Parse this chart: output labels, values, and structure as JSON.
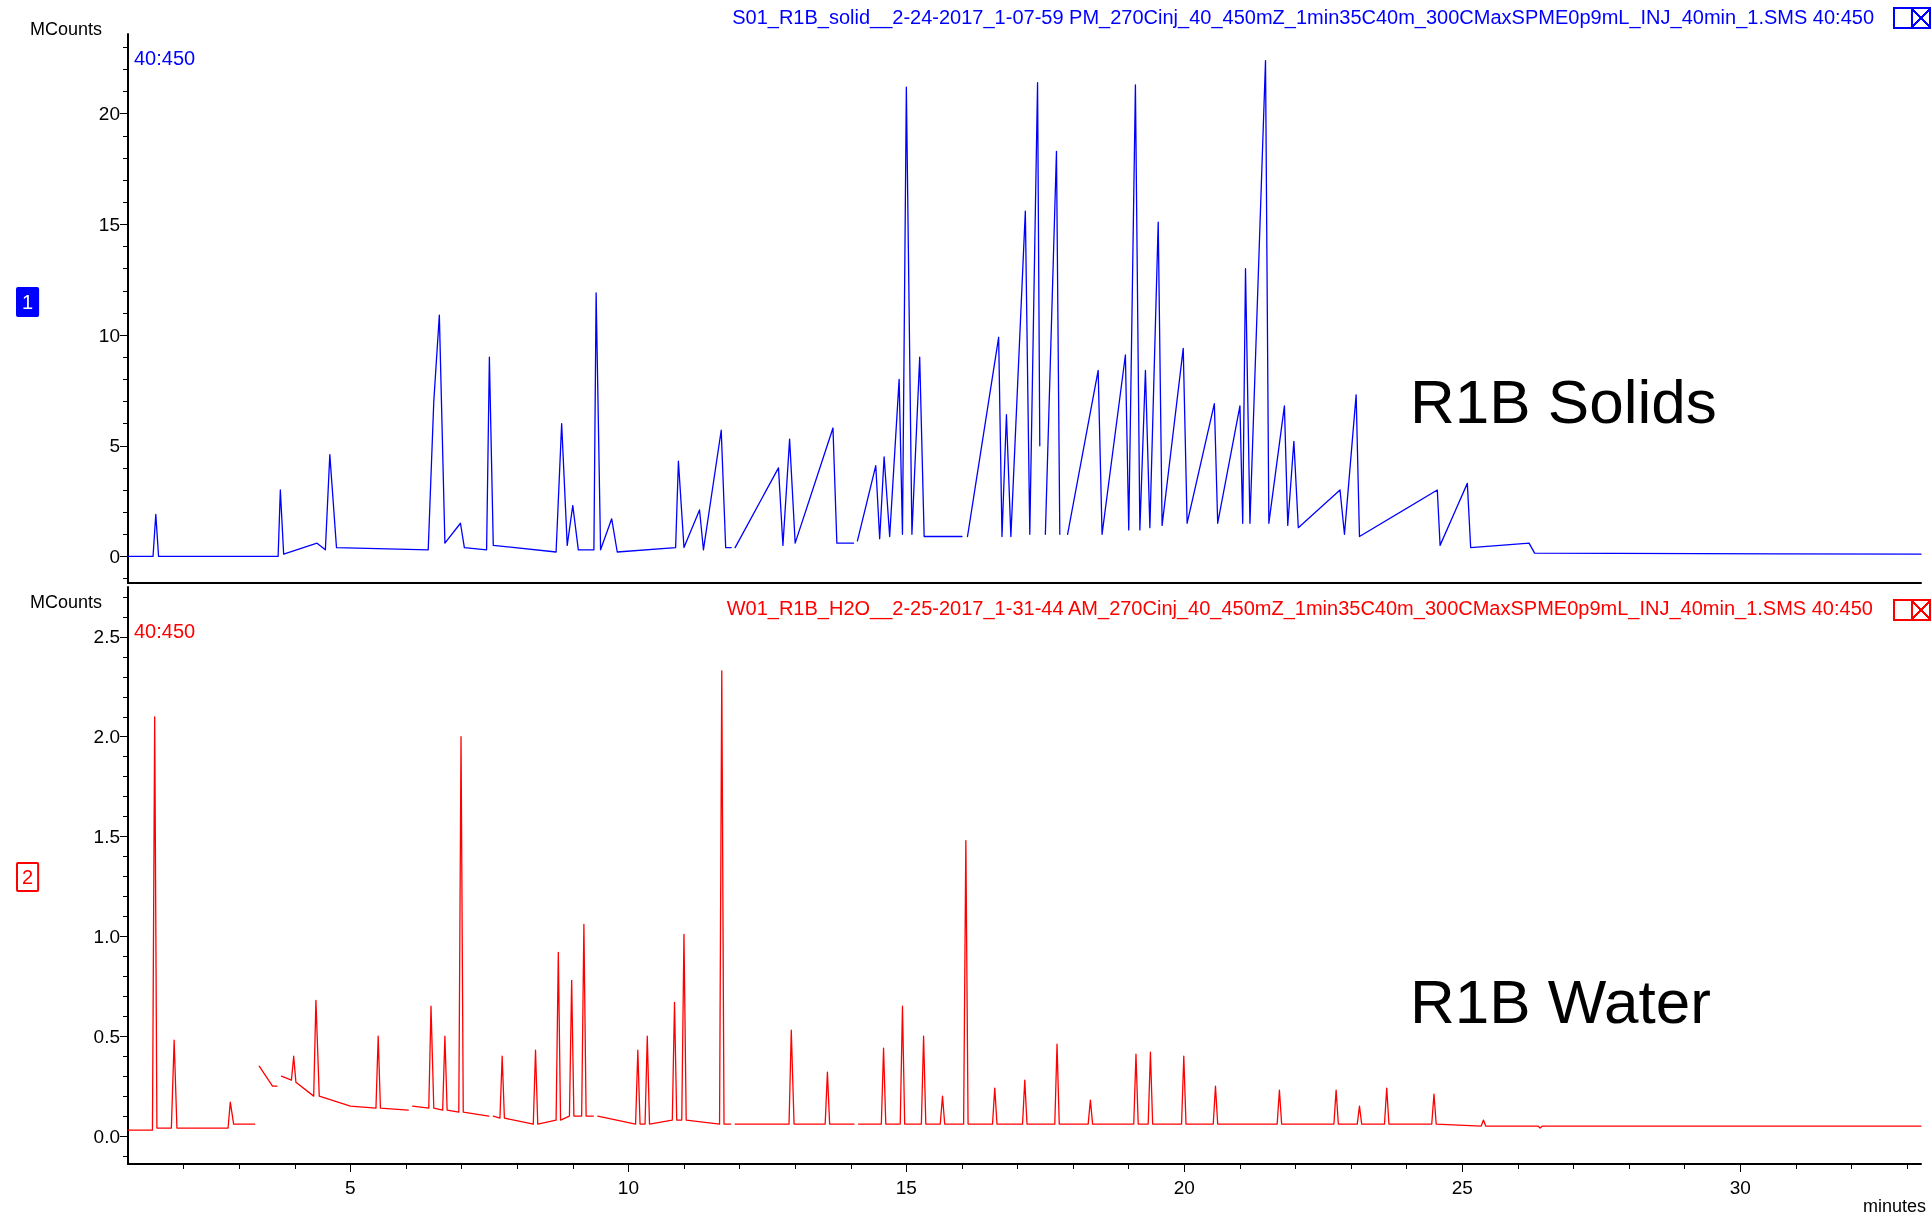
{
  "chart_data": [
    {
      "type": "line",
      "title": "S01_R1B_solid__2-24-2017_1-07-59 PM_270Cinj_40_450mZ_1min35C40m_300CMaxSPME0p9mL_INJ_40min_1.SMS 40:450",
      "ylabel": "MCounts",
      "annotations": [
        "40:450",
        "1",
        "R1B Solids"
      ],
      "marker": "none",
      "tick_labels": "y",
      "xlim": [
        1,
        33.25
      ],
      "xticks": [
        5,
        10,
        15,
        20,
        25,
        30
      ],
      "ylim": [
        -1.2,
        23.6
      ],
      "yticks": [
        0,
        5,
        10,
        15,
        20
      ],
      "x": [
        1.0,
        1.45,
        1.5,
        1.55,
        3.7,
        3.74,
        3.8,
        4.4,
        4.55,
        4.63,
        4.75,
        6.4,
        6.5,
        6.6,
        6.7,
        6.98,
        7.05,
        7.45,
        7.5,
        7.57,
        8.7,
        8.8,
        8.9,
        9.0,
        9.1,
        9.38,
        9.42,
        9.5,
        9.7,
        9.8,
        10.85,
        10.9,
        11.0,
        11.28,
        11.35,
        11.67,
        11.75,
        11.85,
        11.87,
        11.92,
        12.7,
        12.78,
        12.9,
        13.0,
        13.68,
        13.75,
        14.05,
        14.08,
        14.12,
        14.45,
        14.52,
        14.6,
        14.7,
        14.87,
        14.93,
        15.0,
        15.1,
        15.24,
        15.32,
        16.0,
        16.05,
        16.1,
        16.66,
        16.72,
        16.8,
        16.88,
        17.14,
        17.22,
        17.36,
        17.4,
        17.43,
        17.5,
        17.7,
        17.76,
        17.84,
        17.9,
        18.45,
        18.52,
        18.94,
        19.0,
        19.12,
        19.2,
        19.3,
        19.38,
        19.53,
        19.6,
        19.98,
        20.05,
        20.54,
        20.6,
        21.0,
        21.05,
        21.1,
        21.18,
        21.46,
        21.52,
        21.8,
        21.86,
        21.97,
        22.05,
        22.8,
        22.88,
        23.09,
        23.15,
        24.55,
        24.6,
        25.09,
        25.15,
        26.2,
        26.3,
        33.25
      ],
      "series": [
        {
          "color": "#0000ff",
          "values": [
            0,
            0,
            1.9,
            0,
            0,
            3.0,
            0.1,
            0.6,
            0.3,
            4.6,
            0.4,
            0.3,
            7.0,
            10.9,
            0.6,
            1.5,
            0.4,
            0.3,
            9.0,
            0.5,
            0.2,
            6.0,
            0.5,
            2.3,
            0.3,
            0.3,
            11.9,
            0.3,
            1.7,
            0.2,
            0.4,
            4.3,
            0.4,
            2.1,
            0.3,
            5.7,
            0.4,
            0.4,
            null,
            0.4,
            4.0,
            0.5,
            5.3,
            0.6,
            5.8,
            0.6,
            0.6,
            null,
            0.7,
            4.1,
            0.8,
            4.5,
            0.9,
            8.0,
            1.0,
            21.2,
            1.0,
            9.0,
            0.9,
            0.9,
            null,
            0.9,
            9.9,
            0.9,
            6.4,
            0.9,
            15.6,
            1.0,
            21.4,
            5.0,
            null,
            1.0,
            18.3,
            1.0,
            null,
            1.0,
            8.4,
            1.0,
            9.1,
            1.2,
            21.3,
            1.2,
            8.4,
            1.3,
            15.1,
            1.4,
            9.4,
            1.5,
            6.9,
            1.5,
            6.8,
            1.5,
            13.0,
            1.5,
            22.4,
            1.5,
            6.8,
            1.4,
            5.2,
            1.3,
            3.0,
            1.0,
            7.3,
            0.9,
            3.0,
            0.5,
            3.3,
            0.4,
            0.6,
            0.15,
            0.1
          ]
        }
      ]
    },
    {
      "type": "line",
      "title": "W01_R1B_H2O__2-25-2017_1-31-44 AM_270Cinj_40_450mZ_1min35C40m_300CMaxSPME0p9mL_INJ_40min_1.SMS 40:450",
      "ylabel": "MCounts",
      "xlabel": "minutes",
      "annotations": [
        "40:450",
        "2",
        "R1B Water"
      ],
      "marker": "none",
      "xlim": [
        1,
        33.25
      ],
      "xticks": [
        5,
        10,
        15,
        20,
        25,
        30
      ],
      "ylim": [
        -0.14,
        2.75
      ],
      "yticks": [
        {
          "value": 0,
          "label": "0.0"
        },
        0.5,
        {
          "value": 1,
          "label": "1.0"
        },
        1.5,
        {
          "value": 2,
          "label": "2.0"
        },
        2.5
      ],
      "x": [
        1.0,
        1.44,
        1.48,
        1.52,
        1.78,
        1.83,
        1.88,
        2.8,
        2.84,
        2.9,
        3.28,
        3.32,
        3.36,
        3.6,
        3.68,
        3.72,
        3.76,
        3.94,
        3.98,
        4.02,
        4.34,
        4.38,
        4.44,
        5.0,
        5.46,
        5.5,
        5.54,
        6.04,
        6.08,
        6.12,
        6.41,
        6.45,
        6.5,
        6.66,
        6.7,
        6.74,
        6.95,
        6.99,
        7.03,
        7.49,
        7.53,
        7.57,
        7.69,
        7.73,
        7.77,
        8.29,
        8.33,
        8.37,
        8.7,
        8.74,
        8.78,
        8.94,
        8.98,
        9.02,
        9.16,
        9.2,
        9.24,
        9.37,
        9.41,
        9.45,
        10.13,
        10.17,
        10.21,
        10.3,
        10.34,
        10.38,
        10.79,
        10.83,
        10.87,
        10.96,
        11.0,
        11.04,
        11.64,
        11.68,
        11.72,
        11.84,
        11.88,
        11.92,
        12.89,
        12.93,
        12.98,
        13.54,
        13.58,
        13.62,
        14.06,
        14.1,
        14.14,
        14.55,
        14.59,
        14.63,
        14.89,
        14.93,
        14.97,
        15.27,
        15.31,
        15.35,
        15.61,
        15.65,
        15.69,
        16.03,
        16.07,
        16.11,
        16.55,
        16.59,
        16.63,
        17.09,
        17.13,
        17.17,
        17.67,
        17.71,
        17.75,
        18.27,
        18.31,
        18.35,
        19.09,
        19.13,
        19.17,
        19.35,
        19.39,
        19.43,
        19.95,
        19.99,
        20.03,
        20.52,
        20.56,
        20.6,
        21.67,
        21.71,
        21.75,
        22.69,
        22.73,
        22.77,
        23.11,
        23.15,
        23.19,
        23.6,
        23.64,
        23.68,
        24.45,
        24.49,
        24.53,
        25.34,
        25.38,
        25.42,
        26.36,
        26.4,
        26.44,
        33.25
      ],
      "series": [
        {
          "color": "#ff0000",
          "values": [
            0.03,
            0.03,
            2.1,
            0.04,
            0.04,
            0.48,
            0.04,
            0.04,
            0.17,
            0.06,
            0.06,
            null,
            0.35,
            0.25,
            0.25,
            null,
            0.3,
            0.28,
            0.4,
            0.27,
            0.2,
            0.68,
            0.2,
            0.15,
            0.14,
            0.5,
            0.14,
            0.13,
            null,
            0.15,
            0.14,
            0.65,
            0.14,
            0.13,
            0.5,
            0.13,
            0.12,
            2.0,
            0.12,
            0.1,
            null,
            0.1,
            0.09,
            0.4,
            0.09,
            0.06,
            0.43,
            0.06,
            0.08,
            0.92,
            0.08,
            0.1,
            0.78,
            0.1,
            0.1,
            1.06,
            0.1,
            0.1,
            null,
            0.1,
            0.06,
            0.43,
            0.06,
            0.06,
            0.5,
            0.06,
            0.08,
            0.67,
            0.08,
            0.08,
            1.01,
            0.08,
            0.06,
            2.33,
            0.06,
            0.06,
            null,
            0.06,
            0.06,
            0.53,
            0.06,
            0.06,
            0.32,
            0.06,
            0.06,
            null,
            0.06,
            0.06,
            0.44,
            0.06,
            0.06,
            0.65,
            0.06,
            0.06,
            0.5,
            0.06,
            0.06,
            0.2,
            0.06,
            0.06,
            1.48,
            0.06,
            0.06,
            0.24,
            0.06,
            0.06,
            0.28,
            0.06,
            0.06,
            0.46,
            0.06,
            0.06,
            0.18,
            0.06,
            0.06,
            0.41,
            0.06,
            0.06,
            0.42,
            0.06,
            0.06,
            0.4,
            0.06,
            0.06,
            0.25,
            0.06,
            0.06,
            0.23,
            0.06,
            0.06,
            0.23,
            0.06,
            0.06,
            0.15,
            0.06,
            0.06,
            0.24,
            0.06,
            0.06,
            0.21,
            0.06,
            0.05,
            0.08,
            0.05,
            0.05,
            0.04,
            0.05,
            0.05
          ]
        }
      ]
    }
  ]
}
